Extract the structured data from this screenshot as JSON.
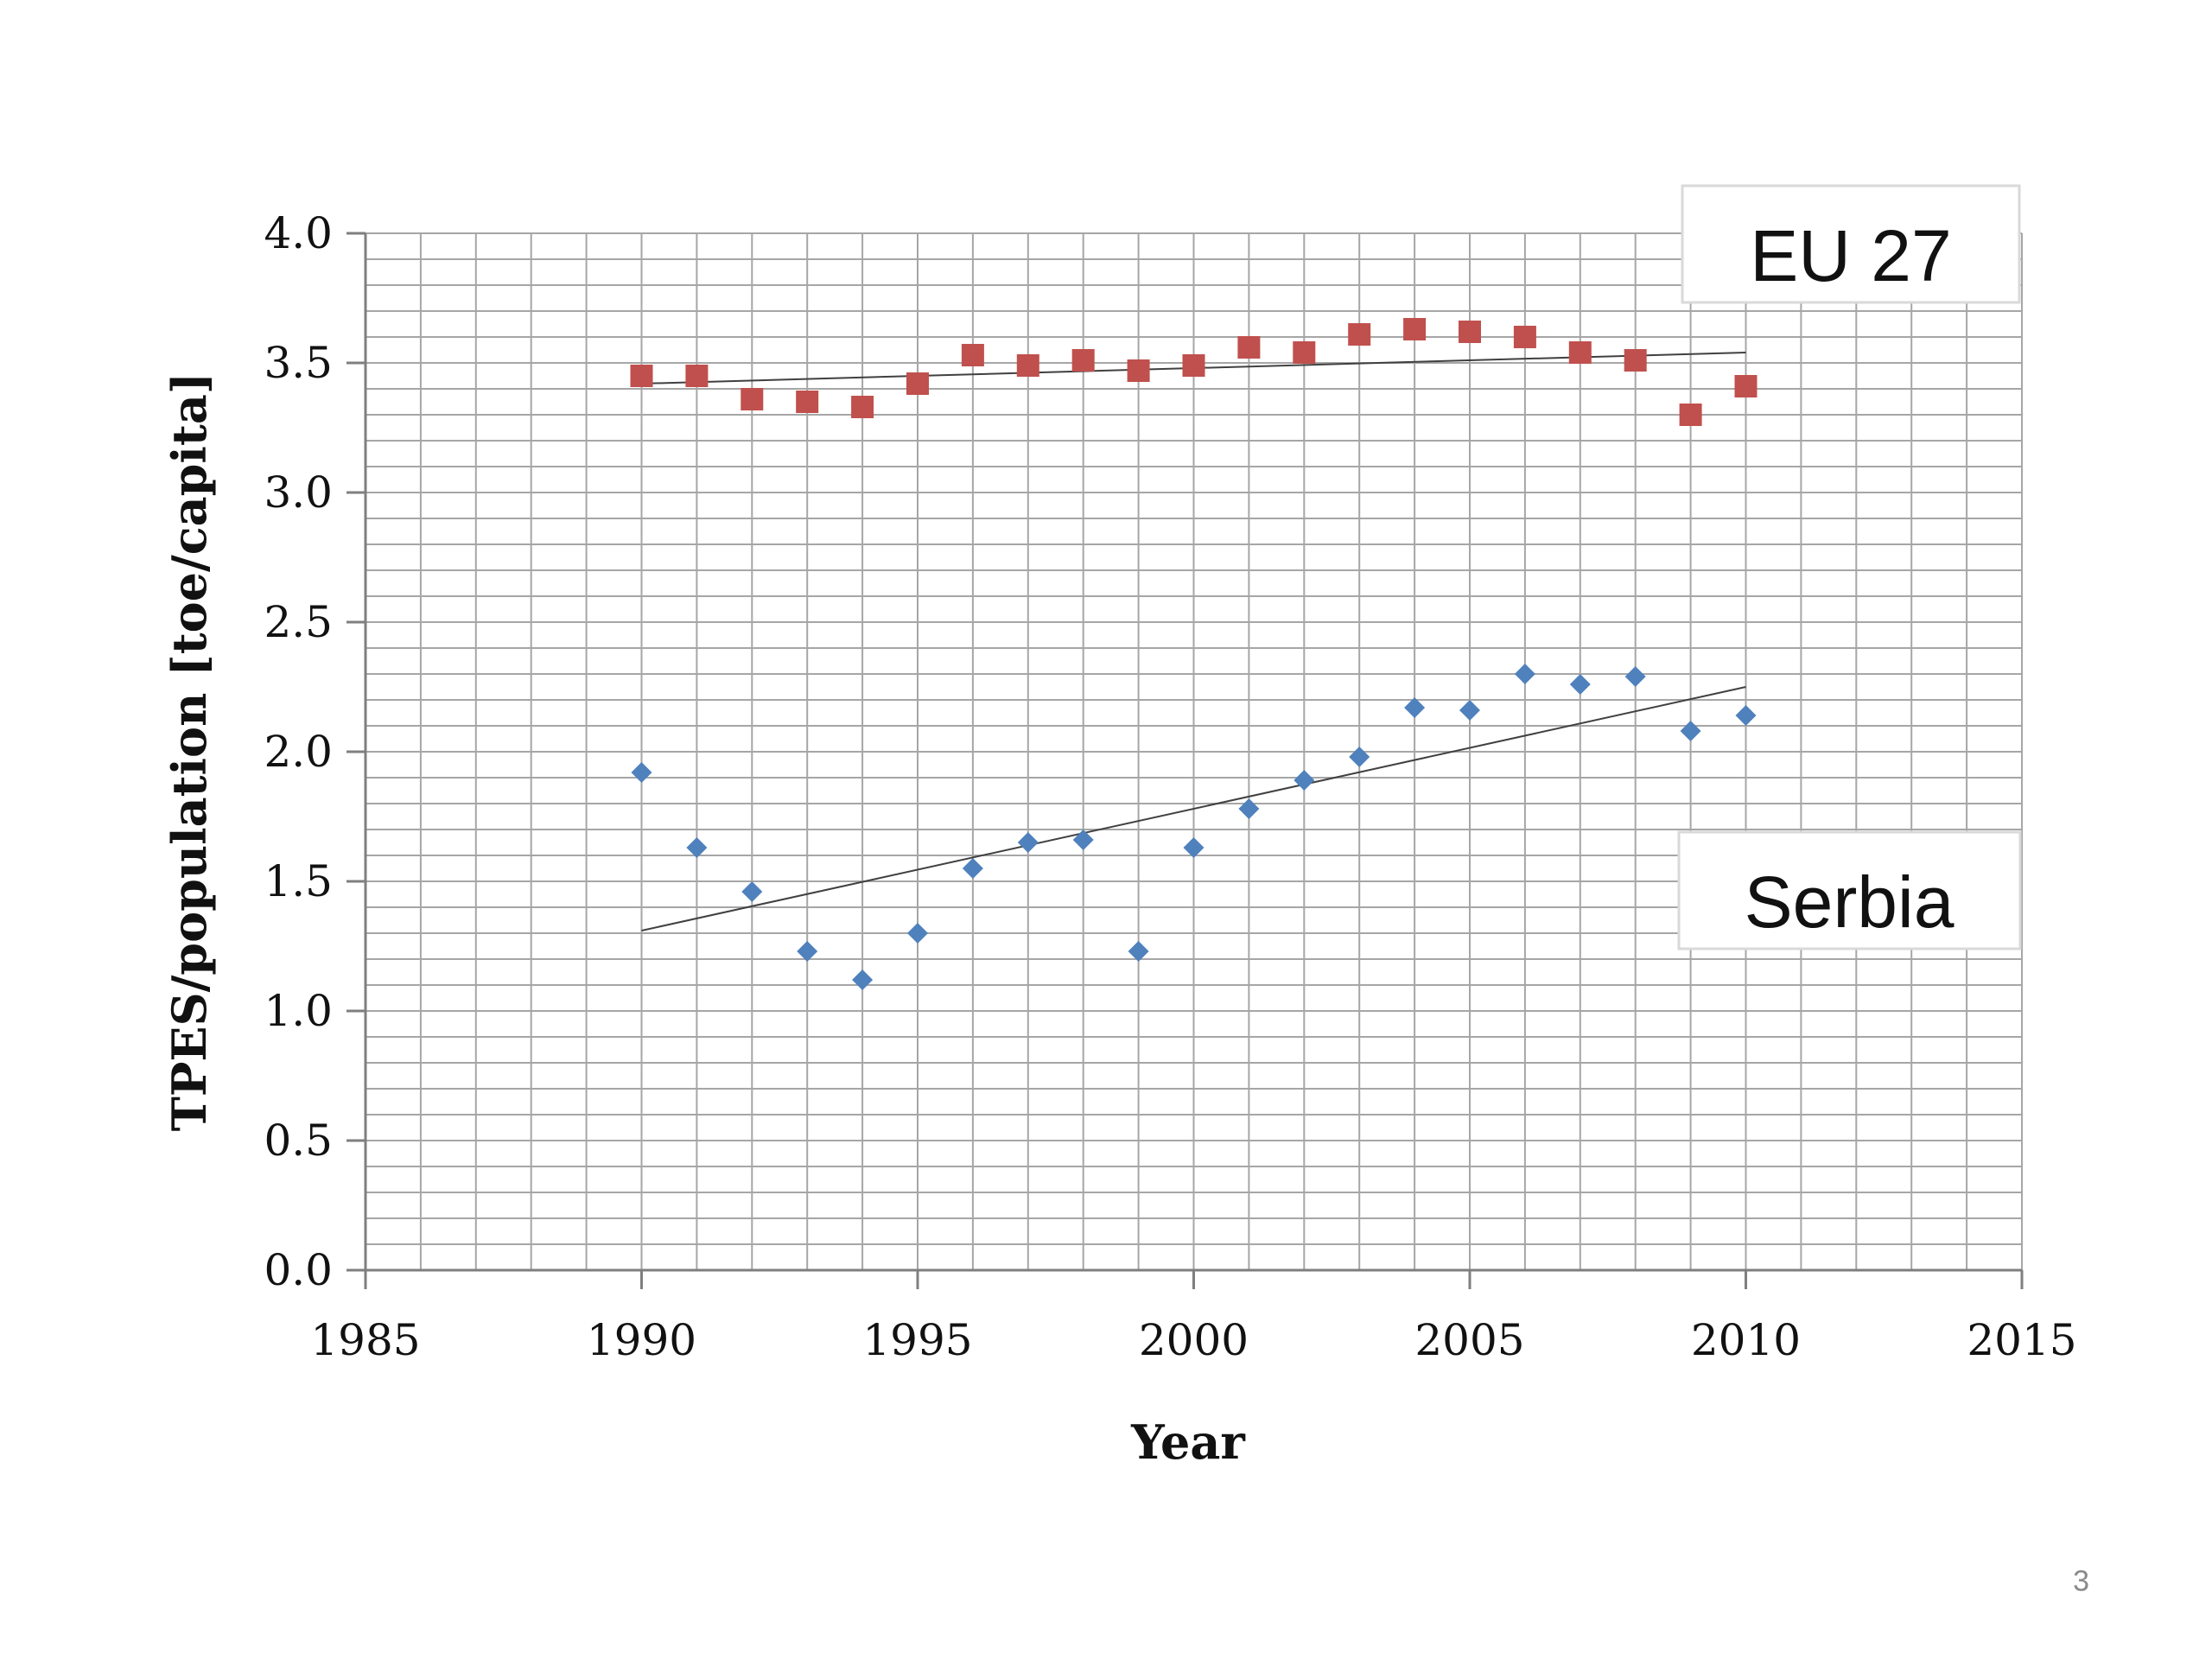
{
  "chart_data": {
    "type": "scatter",
    "title": "",
    "xlabel": "Year",
    "ylabel": "TPES/population [toe/capita]",
    "xlim": [
      1985,
      2015
    ],
    "ylim": [
      0.0,
      4.0
    ],
    "x_ticks": [
      1985,
      1990,
      1995,
      2000,
      2005,
      2010,
      2015
    ],
    "x_tick_labels": [
      "1985",
      "1990",
      "1995",
      "2000",
      "2005",
      "2010",
      "2015"
    ],
    "y_ticks": [
      0.0,
      0.5,
      1.0,
      1.5,
      2.0,
      2.5,
      3.0,
      3.5,
      4.0
    ],
    "y_tick_labels": [
      "0.0",
      "0.5",
      "1.0",
      "1.5",
      "2.0",
      "2.5",
      "3.0",
      "3.5",
      "4.0"
    ],
    "grid": true,
    "series": [
      {
        "name": "EU 27",
        "marker": "square",
        "color": "#c0504d",
        "x": [
          1990,
          1991,
          1992,
          1993,
          1994,
          1995,
          1996,
          1997,
          1998,
          1999,
          2000,
          2001,
          2002,
          2003,
          2004,
          2005,
          2006,
          2007,
          2008,
          2009,
          2010
        ],
        "y": [
          3.45,
          3.45,
          3.36,
          3.35,
          3.33,
          3.42,
          3.53,
          3.49,
          3.51,
          3.47,
          3.49,
          3.56,
          3.54,
          3.61,
          3.63,
          3.62,
          3.6,
          3.54,
          3.51,
          3.3,
          3.41
        ],
        "trendline": {
          "x": [
            1990,
            2010
          ],
          "y": [
            3.42,
            3.54
          ]
        }
      },
      {
        "name": "Serbia",
        "marker": "diamond",
        "color": "#4f81bd",
        "x": [
          1990,
          1991,
          1992,
          1993,
          1994,
          1995,
          1996,
          1997,
          1998,
          1999,
          2000,
          2001,
          2002,
          2003,
          2004,
          2005,
          2006,
          2007,
          2008,
          2009,
          2010
        ],
        "y": [
          1.92,
          1.63,
          1.46,
          1.23,
          1.12,
          1.3,
          1.55,
          1.65,
          1.66,
          1.23,
          1.63,
          1.78,
          1.89,
          1.98,
          2.17,
          2.16,
          2.3,
          2.26,
          2.29,
          2.08,
          2.14
        ],
        "trendline": {
          "x": [
            1990,
            2010
          ],
          "y": [
            1.31,
            2.25
          ]
        }
      }
    ],
    "annotations": [
      {
        "text": "EU 27",
        "series": "EU 27"
      },
      {
        "text": "Serbia",
        "series": "Serbia"
      }
    ]
  },
  "slide": {
    "number": "3"
  },
  "colors": {
    "grid": "#a6a6a6",
    "axis": "#7f7f7f",
    "trendline": "#404040"
  }
}
